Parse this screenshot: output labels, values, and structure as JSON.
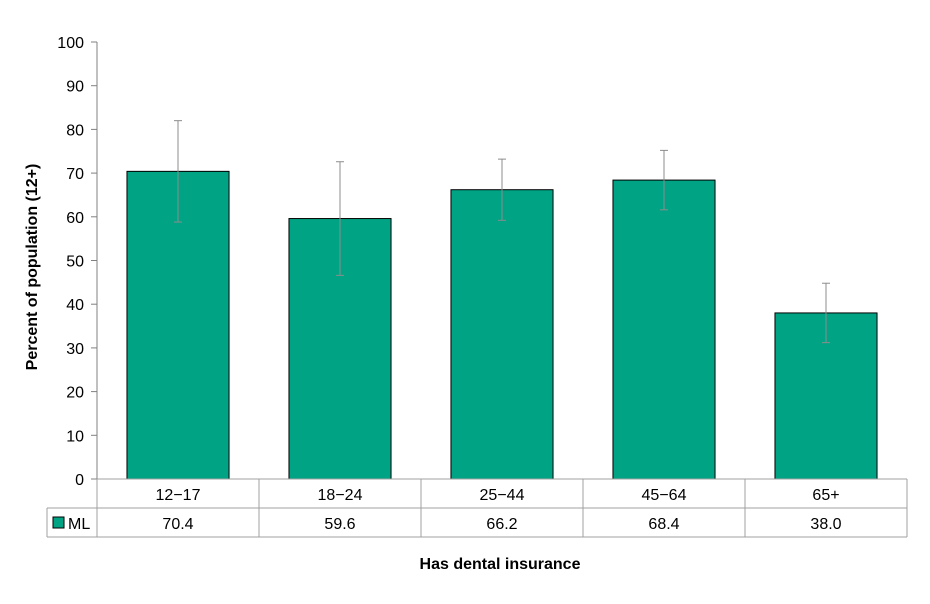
{
  "chart_data": {
    "type": "bar",
    "categories": [
      "12−17",
      "18−24",
      "25−44",
      "45−64",
      "65+"
    ],
    "series": [
      {
        "name": "ML",
        "values": [
          70.4,
          59.6,
          66.2,
          68.4,
          38.0
        ],
        "display_values": [
          "70.4",
          "59.6",
          "66.2",
          "68.4",
          "38.0"
        ],
        "error_low": [
          58.8,
          46.6,
          59.2,
          61.6,
          31.2
        ],
        "error_high": [
          82.0,
          72.6,
          73.2,
          75.2,
          44.8
        ],
        "color": "#00A383"
      }
    ],
    "title": "",
    "xlabel": "Has dental insurance",
    "ylabel": "Percent of population (12+)",
    "ylim": [
      0,
      100
    ],
    "yticks": [
      "0",
      "10",
      "20",
      "30",
      "40",
      "50",
      "60",
      "70",
      "80",
      "90",
      "100"
    ],
    "grid": false,
    "legend": "data-table-left",
    "data_table": true
  }
}
